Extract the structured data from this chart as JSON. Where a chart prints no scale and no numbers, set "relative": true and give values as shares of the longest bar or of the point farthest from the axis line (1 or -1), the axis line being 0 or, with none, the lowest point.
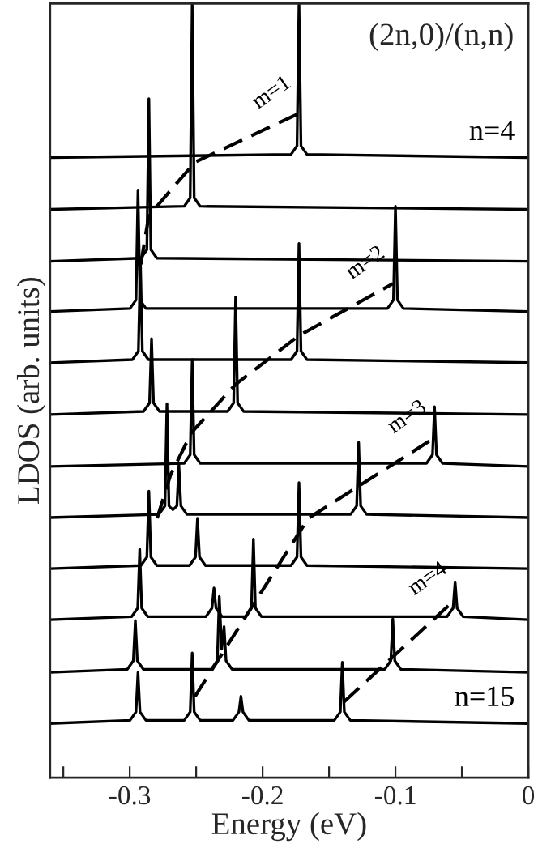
{
  "chart_data": {
    "type": "line",
    "title": "(2n,0)/(n,n)",
    "xlabel": "Energy (eV)",
    "ylabel": "LDOS (arb. units)",
    "relative": true,
    "xlim": [
      -0.36,
      0
    ],
    "xticks": [
      {
        "value": -0.35,
        "label": null
      },
      -0.3,
      {
        "value": -0.25,
        "label": null
      },
      -0.2,
      {
        "value": -0.15,
        "label": null
      },
      -0.1,
      {
        "value": -0.05,
        "label": null
      },
      0
    ],
    "series": [
      {
        "name": "n=4",
        "color": "#000000",
        "x": [
          -0.36,
          -0.1786,
          -0.1741,
          -0.1726,
          -0.1711,
          -0.1666,
          0
        ],
        "values": [
          0.801,
          0.805,
          0.816,
          1.0,
          0.816,
          0.805,
          0.801
        ]
      },
      {
        "color": "#000000",
        "x": [
          -0.36,
          -0.259,
          -0.2545,
          -0.253,
          -0.2515,
          -0.247,
          0
        ],
        "values": [
          0.734,
          0.738,
          0.749,
          1.0,
          0.749,
          0.738,
          0.734
        ]
      },
      {
        "color": "#000000",
        "x": [
          -0.36,
          -0.2916,
          -0.2871,
          -0.2856,
          -0.2841,
          -0.2796,
          0
        ],
        "values": [
          0.667,
          0.671,
          0.682,
          0.877,
          0.682,
          0.671,
          0.667
        ]
      },
      {
        "color": "#000000",
        "x": [
          -0.36,
          -0.2998,
          -0.2953,
          -0.2938,
          -0.2923,
          -0.2878,
          -0.106,
          -0.1015,
          -0.1,
          -0.0985,
          -0.094,
          0
        ],
        "values": [
          0.602,
          0.606,
          0.617,
          0.759,
          0.617,
          0.606,
          0.606,
          0.617,
          0.738,
          0.617,
          0.606,
          0.602
        ]
      },
      {
        "color": "#000000",
        "x": [
          -0.36,
          -0.298,
          -0.2935,
          -0.292,
          -0.2905,
          -0.286,
          -0.1786,
          -0.1741,
          -0.1726,
          -0.1711,
          -0.1666,
          0
        ],
        "values": [
          0.536,
          0.54,
          0.551,
          0.669,
          0.551,
          0.54,
          0.54,
          0.551,
          0.69,
          0.551,
          0.54,
          0.536
        ]
      },
      {
        "color": "#000000",
        "x": [
          -0.36,
          -0.2896,
          -0.2851,
          -0.2836,
          -0.2821,
          -0.2776,
          -0.2263,
          -0.2218,
          -0.2203,
          -0.2188,
          -0.2143,
          0
        ],
        "values": [
          0.469,
          0.473,
          0.484,
          0.567,
          0.484,
          0.473,
          0.473,
          0.484,
          0.621,
          0.484,
          0.473,
          0.469
        ]
      },
      {
        "color": "#000000",
        "x": [
          -0.36,
          -0.259,
          -0.2545,
          -0.253,
          -0.2515,
          -0.247,
          -0.0766,
          -0.0721,
          -0.0706,
          -0.0691,
          -0.0646,
          0
        ],
        "values": [
          0.402,
          0.406,
          0.417,
          0.54,
          0.417,
          0.406,
          0.406,
          0.417,
          0.479,
          0.417,
          0.406,
          0.402
        ]
      },
      {
        "color": "#000000",
        "x": [
          -0.36,
          -0.278,
          -0.2735,
          -0.272,
          -0.2705,
          -0.2675,
          -0.2645,
          -0.263,
          -0.2615,
          -0.257,
          -0.1337,
          -0.1292,
          -0.1277,
          -0.1262,
          -0.1217,
          0
        ],
        "values": [
          0.336,
          0.34,
          0.351,
          0.483,
          0.351,
          0.346,
          0.351,
          0.404,
          0.351,
          0.34,
          0.34,
          0.351,
          0.433,
          0.351,
          0.34,
          0.336
        ]
      },
      {
        "color": "#000000",
        "x": [
          -0.36,
          -0.2916,
          -0.2871,
          -0.2856,
          -0.2841,
          -0.2796,
          -0.255,
          -0.2505,
          -0.249,
          -0.2475,
          -0.243,
          -0.1786,
          -0.1741,
          -0.1726,
          -0.1711,
          -0.1666,
          0
        ],
        "values": [
          0.27,
          0.274,
          0.285,
          0.37,
          0.285,
          0.274,
          0.274,
          0.285,
          0.335,
          0.285,
          0.274,
          0.274,
          0.285,
          0.381,
          0.285,
          0.274,
          0.27
        ]
      },
      {
        "color": "#000000",
        "x": [
          -0.36,
          -0.2985,
          -0.294,
          -0.2925,
          -0.291,
          -0.2865,
          -0.2426,
          -0.2381,
          -0.2366,
          -0.2351,
          -0.2306,
          -0.2129,
          -0.2084,
          -0.2069,
          -0.2054,
          -0.2009,
          -0.0611,
          -0.0566,
          -0.0551,
          -0.0536,
          -0.0491,
          0
        ],
        "values": [
          0.204,
          0.208,
          0.219,
          0.295,
          0.219,
          0.208,
          0.208,
          0.219,
          0.245,
          0.219,
          0.208,
          0.208,
          0.219,
          0.308,
          0.219,
          0.208,
          0.208,
          0.219,
          0.253,
          0.219,
          0.208,
          0.204
        ]
      },
      {
        "color": "#000000",
        "x": [
          -0.36,
          -0.3018,
          -0.2973,
          -0.2958,
          -0.2943,
          -0.2898,
          -0.2386,
          -0.2341,
          -0.2326,
          -0.2308,
          -0.229,
          -0.2275,
          -0.223,
          -0.108,
          -0.1035,
          -0.102,
          -0.1005,
          -0.096,
          0
        ],
        "values": [
          0.136,
          0.14,
          0.151,
          0.203,
          0.151,
          0.14,
          0.14,
          0.151,
          0.234,
          0.166,
          0.195,
          0.151,
          0.14,
          0.14,
          0.151,
          0.205,
          0.151,
          0.14,
          0.136
        ]
      },
      {
        "name": "n=15",
        "color": "#000000",
        "x": [
          -0.36,
          -0.2998,
          -0.2953,
          -0.2938,
          -0.2923,
          -0.2878,
          -0.259,
          -0.2545,
          -0.253,
          -0.2515,
          -0.247,
          -0.2223,
          -0.2178,
          -0.2163,
          -0.2148,
          -0.2103,
          -0.146,
          -0.1415,
          -0.14,
          -0.1385,
          -0.134,
          0
        ],
        "values": [
          0.07,
          0.074,
          0.085,
          0.136,
          0.085,
          0.074,
          0.074,
          0.085,
          0.161,
          0.085,
          0.074,
          0.074,
          0.085,
          0.105,
          0.085,
          0.074,
          0.074,
          0.085,
          0.149,
          0.085,
          0.074,
          0.07
        ]
      },
      {
        "name": "m=1",
        "color": "#000000",
        "line_style": "dashed",
        "x": [
          -0.2917,
          -0.2856,
          -0.2509,
          -0.1726
        ],
        "values": [
          0.663,
          0.726,
          0.795,
          0.858
        ]
      },
      {
        "name": "m=2",
        "color": "#000000",
        "line_style": "dashed",
        "x": [
          -0.2794,
          -0.2693,
          -0.2534,
          -0.2203,
          -0.1726,
          -0.102
        ],
        "values": [
          0.335,
          0.391,
          0.446,
          0.508,
          0.571,
          0.638
        ]
      },
      {
        "name": "m=3",
        "color": "#000000",
        "line_style": "dashed",
        "x": [
          -0.2509,
          -0.1656,
          -0.0706
        ],
        "values": [
          0.105,
          0.335,
          0.439
        ]
      },
      {
        "name": "m=4",
        "color": "#000000",
        "line_style": "dashed",
        "x": [
          -0.1387,
          -0.0551
        ],
        "values": [
          0.098,
          0.23
        ]
      }
    ]
  }
}
